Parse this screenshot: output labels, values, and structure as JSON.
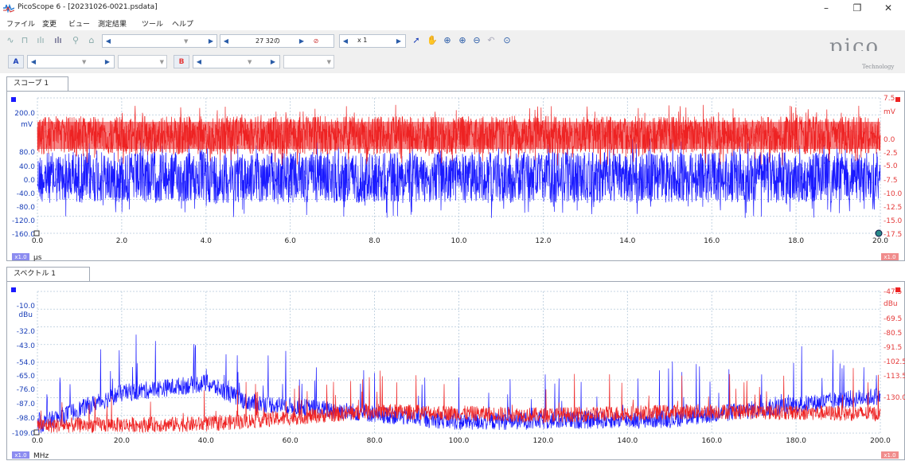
{
  "window": {
    "title": "PicoScope 6 - [20231026-0021.psdata]",
    "minimize": "–",
    "maximize": "❐",
    "close": "✕"
  },
  "menu": [
    "ファイル",
    "変更",
    "ビュー",
    "測定結果",
    "ツール",
    "ヘルプ"
  ],
  "toolbar": {
    "capture_count": "27 32の",
    "zoom": "x 1",
    "channel_a": "A",
    "channel_b": "B"
  },
  "logo": {
    "text": "pico",
    "subtitle": "Technology"
  },
  "colors": {
    "channel_a": "#1a1aff",
    "channel_b": "#ee2222",
    "grid": "#b5c9da"
  },
  "scope": {
    "tab": "スコープ 1",
    "left_unit": "mV",
    "right_unit": "mV",
    "left_ticks": [
      "200.0",
      "80.0",
      "40.0",
      "0.0",
      "-40.0",
      "-80.0",
      "-120.0",
      "-160.0"
    ],
    "right_ticks": [
      "7.5",
      "0.0",
      "-2.5",
      "-5.0",
      "-7.5",
      "-10.0",
      "-12.5",
      "-15.0",
      "-17.5"
    ],
    "x_ticks": [
      "0.0",
      "2.0",
      "4.0",
      "6.0",
      "8.0",
      "10.0",
      "12.0",
      "14.0",
      "16.0",
      "18.0",
      "20.0"
    ],
    "x_unit": "μs",
    "zoom_badge_left": "x1.0",
    "zoom_badge_right": "x1.0"
  },
  "spectrum": {
    "tab": "スペクトル 1",
    "left_unit": "dBu",
    "right_unit": "dBu",
    "left_ticks": [
      "-10.0",
      "-32.0",
      "-43.0",
      "-54.0",
      "-65.0",
      "-76.0",
      "-87.0",
      "-98.0",
      "-109.0"
    ],
    "right_ticks": [
      "-47.5",
      "-69.5",
      "-80.5",
      "-91.5",
      "-102.5",
      "-113.5",
      "-130.0"
    ],
    "x_ticks": [
      "0.0",
      "20.0",
      "40.0",
      "60.0",
      "80.0",
      "100.0",
      "120.0",
      "140.0",
      "160.0",
      "180.0",
      "200.0"
    ],
    "x_unit": "MHz",
    "zoom_badge_left": "x1.0",
    "zoom_badge_right": "x1.0"
  },
  "chart_data": [
    {
      "type": "line",
      "title": "",
      "xlabel": "μs",
      "x_range": [
        0,
        20
      ],
      "series": [
        {
          "color": "#1a1aff",
          "axis": "left",
          "values_envelope_mV": [
            -90,
            60
          ]
        },
        {
          "color": "#ee2222",
          "axis": "right",
          "values_envelope_mV": [
            -3,
            6
          ]
        }
      ],
      "grid": true
    },
    {
      "type": "line",
      "title": "",
      "xlabel": "MHz",
      "x_range": [
        0,
        200
      ],
      "series": [
        {
          "color": "#1a1aff",
          "axis": "left",
          "baseline_dBu": [
            [
              0,
              -103
            ],
            [
              20,
              -78
            ],
            [
              40,
              -70
            ],
            [
              50,
              -85
            ],
            [
              100,
              -100
            ],
            [
              150,
              -98
            ],
            [
              200,
              -80
            ]
          ]
        },
        {
          "color": "#ee2222",
          "axis": "right",
          "baseline_dBu": [
            [
              0,
              -103
            ],
            [
              40,
              -102
            ],
            [
              80,
              -92
            ],
            [
              120,
              -95
            ],
            [
              160,
              -92
            ],
            [
              200,
              -94
            ]
          ]
        }
      ],
      "grid": true
    }
  ]
}
